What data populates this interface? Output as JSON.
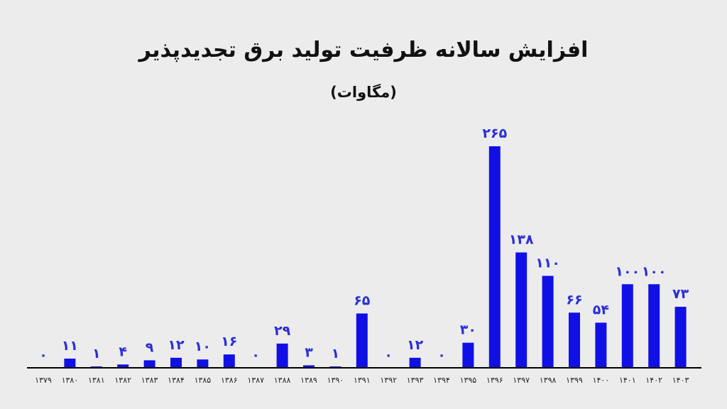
{
  "chart_data": {
    "type": "bar",
    "title": "افزایش سالانه ظرفیت تولید برق تجدیدپذیر",
    "subtitle": "(مگاوات)",
    "categories": [
      "۱۳۷۹",
      "۱۳۸۰",
      "۱۳۸۱",
      "۱۳۸۲",
      "۱۳۸۳",
      "۱۳۸۴",
      "۱۳۸۵",
      "۱۳۸۶",
      "۱۳۸۷",
      "۱۳۸۸",
      "۱۳۸۹",
      "۱۳۹۰",
      "۱۳۹۱",
      "۱۳۹۲",
      "۱۳۹۳",
      "۱۳۹۴",
      "۱۳۹۵",
      "۱۳۹۶",
      "۱۳۹۷",
      "۱۳۹۸",
      "۱۳۹۹",
      "۱۴۰۰",
      "۱۴۰۱",
      "۱۴۰۲",
      "۱۴۰۳"
    ],
    "values": [
      0,
      11,
      1,
      4,
      9,
      12,
      10,
      16,
      0,
      29,
      3,
      1,
      65,
      0,
      12,
      0,
      30,
      265,
      138,
      110,
      66,
      54,
      100,
      100,
      73
    ],
    "value_labels": [
      "۰",
      "۱۱",
      "۱",
      "۴",
      "۹",
      "۱۲",
      "۱۰",
      "۱۶",
      "۰",
      "۲۹",
      "۳",
      "۱",
      "۶۵",
      "۰",
      "۱۲",
      "۰",
      "۳۰",
      "۲۶۵",
      "۱۳۸",
      "۱۱۰",
      "۶۶",
      "۵۴",
      "۱۰۰",
      "۱۰۰",
      "۷۳"
    ],
    "ylim": [
      0,
      265
    ],
    "grid": false,
    "colors": {
      "bar": "#1010e6",
      "label": "#2b2fd6",
      "axis": "#000000",
      "background": "#ececec"
    }
  }
}
